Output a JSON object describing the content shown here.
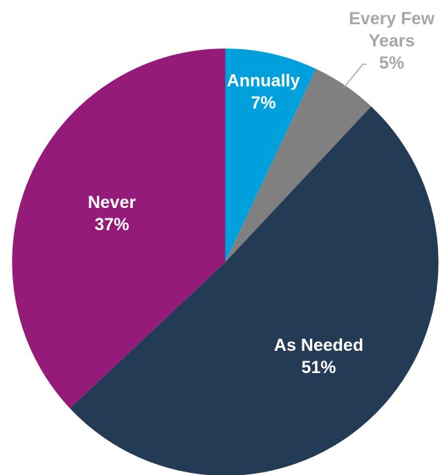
{
  "chart_data": {
    "type": "pie",
    "title": "",
    "start_angle_deg": 0,
    "direction": "clockwise",
    "slices": [
      {
        "name": "Annually",
        "value": 7,
        "value_label": "7%",
        "color": "#00A0DC",
        "label_color": "#FFFFFF",
        "label_placement": "inside"
      },
      {
        "name": "Every Few Years",
        "value": 5,
        "value_label": "5%",
        "color": "#808080",
        "label_color": "#A6A6A6",
        "label_placement": "outside"
      },
      {
        "name": "As Needed",
        "value": 51,
        "value_label": "51%",
        "color": "#243B55",
        "label_color": "#FFFFFF",
        "label_placement": "inside"
      },
      {
        "name": "Never",
        "value": 37,
        "value_label": "37%",
        "color": "#951B7A",
        "label_color": "#FFFFFF",
        "label_placement": "inside"
      }
    ]
  }
}
